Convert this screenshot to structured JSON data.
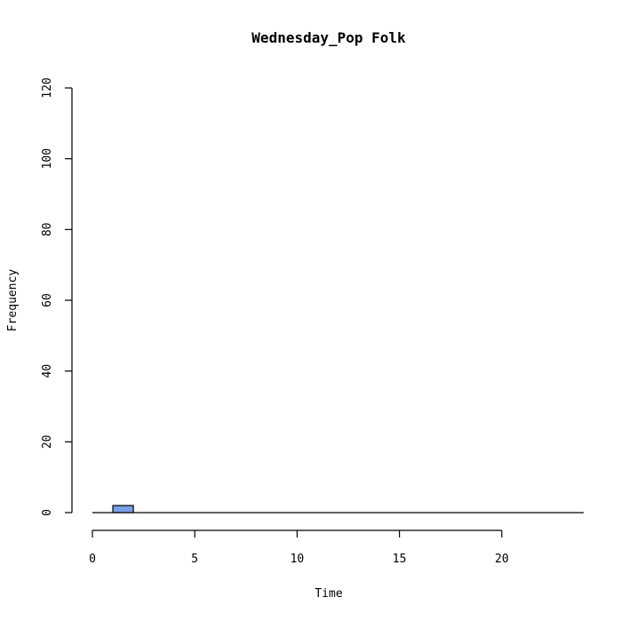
{
  "chart_data": {
    "type": "bar",
    "title": "Wednesday_Pop Folk",
    "xlabel": "Time",
    "ylabel": "Frequency",
    "xlim": [
      0,
      24
    ],
    "ylim": [
      0,
      120
    ],
    "x_ticks": [
      0,
      5,
      10,
      15,
      20
    ],
    "y_ticks": [
      0,
      20,
      40,
      60,
      80,
      100,
      120
    ],
    "bins": [
      {
        "start": 0,
        "end": 1,
        "count": 0
      },
      {
        "start": 1,
        "end": 2,
        "count": 2
      },
      {
        "start": 2,
        "end": 3,
        "count": 0
      },
      {
        "start": 3,
        "end": 4,
        "count": 0
      },
      {
        "start": 4,
        "end": 5,
        "count": 0
      },
      {
        "start": 5,
        "end": 6,
        "count": 0
      },
      {
        "start": 6,
        "end": 7,
        "count": 0
      },
      {
        "start": 7,
        "end": 8,
        "count": 0
      },
      {
        "start": 8,
        "end": 9,
        "count": 0
      },
      {
        "start": 9,
        "end": 10,
        "count": 0
      },
      {
        "start": 10,
        "end": 11,
        "count": 0
      },
      {
        "start": 11,
        "end": 12,
        "count": 0
      },
      {
        "start": 12,
        "end": 13,
        "count": 0
      },
      {
        "start": 13,
        "end": 14,
        "count": 0
      },
      {
        "start": 14,
        "end": 15,
        "count": 0
      },
      {
        "start": 15,
        "end": 16,
        "count": 0
      },
      {
        "start": 16,
        "end": 17,
        "count": 0
      },
      {
        "start": 17,
        "end": 18,
        "count": 0
      },
      {
        "start": 18,
        "end": 19,
        "count": 0
      },
      {
        "start": 19,
        "end": 20,
        "count": 0
      },
      {
        "start": 20,
        "end": 21,
        "count": 0
      },
      {
        "start": 21,
        "end": 22,
        "count": 0
      },
      {
        "start": 22,
        "end": 23,
        "count": 0
      },
      {
        "start": 23,
        "end": 24,
        "count": 0
      }
    ],
    "bar_color": "#7b9fe8",
    "bar_edge_color": "#000000",
    "grid": false,
    "legend": "none"
  }
}
